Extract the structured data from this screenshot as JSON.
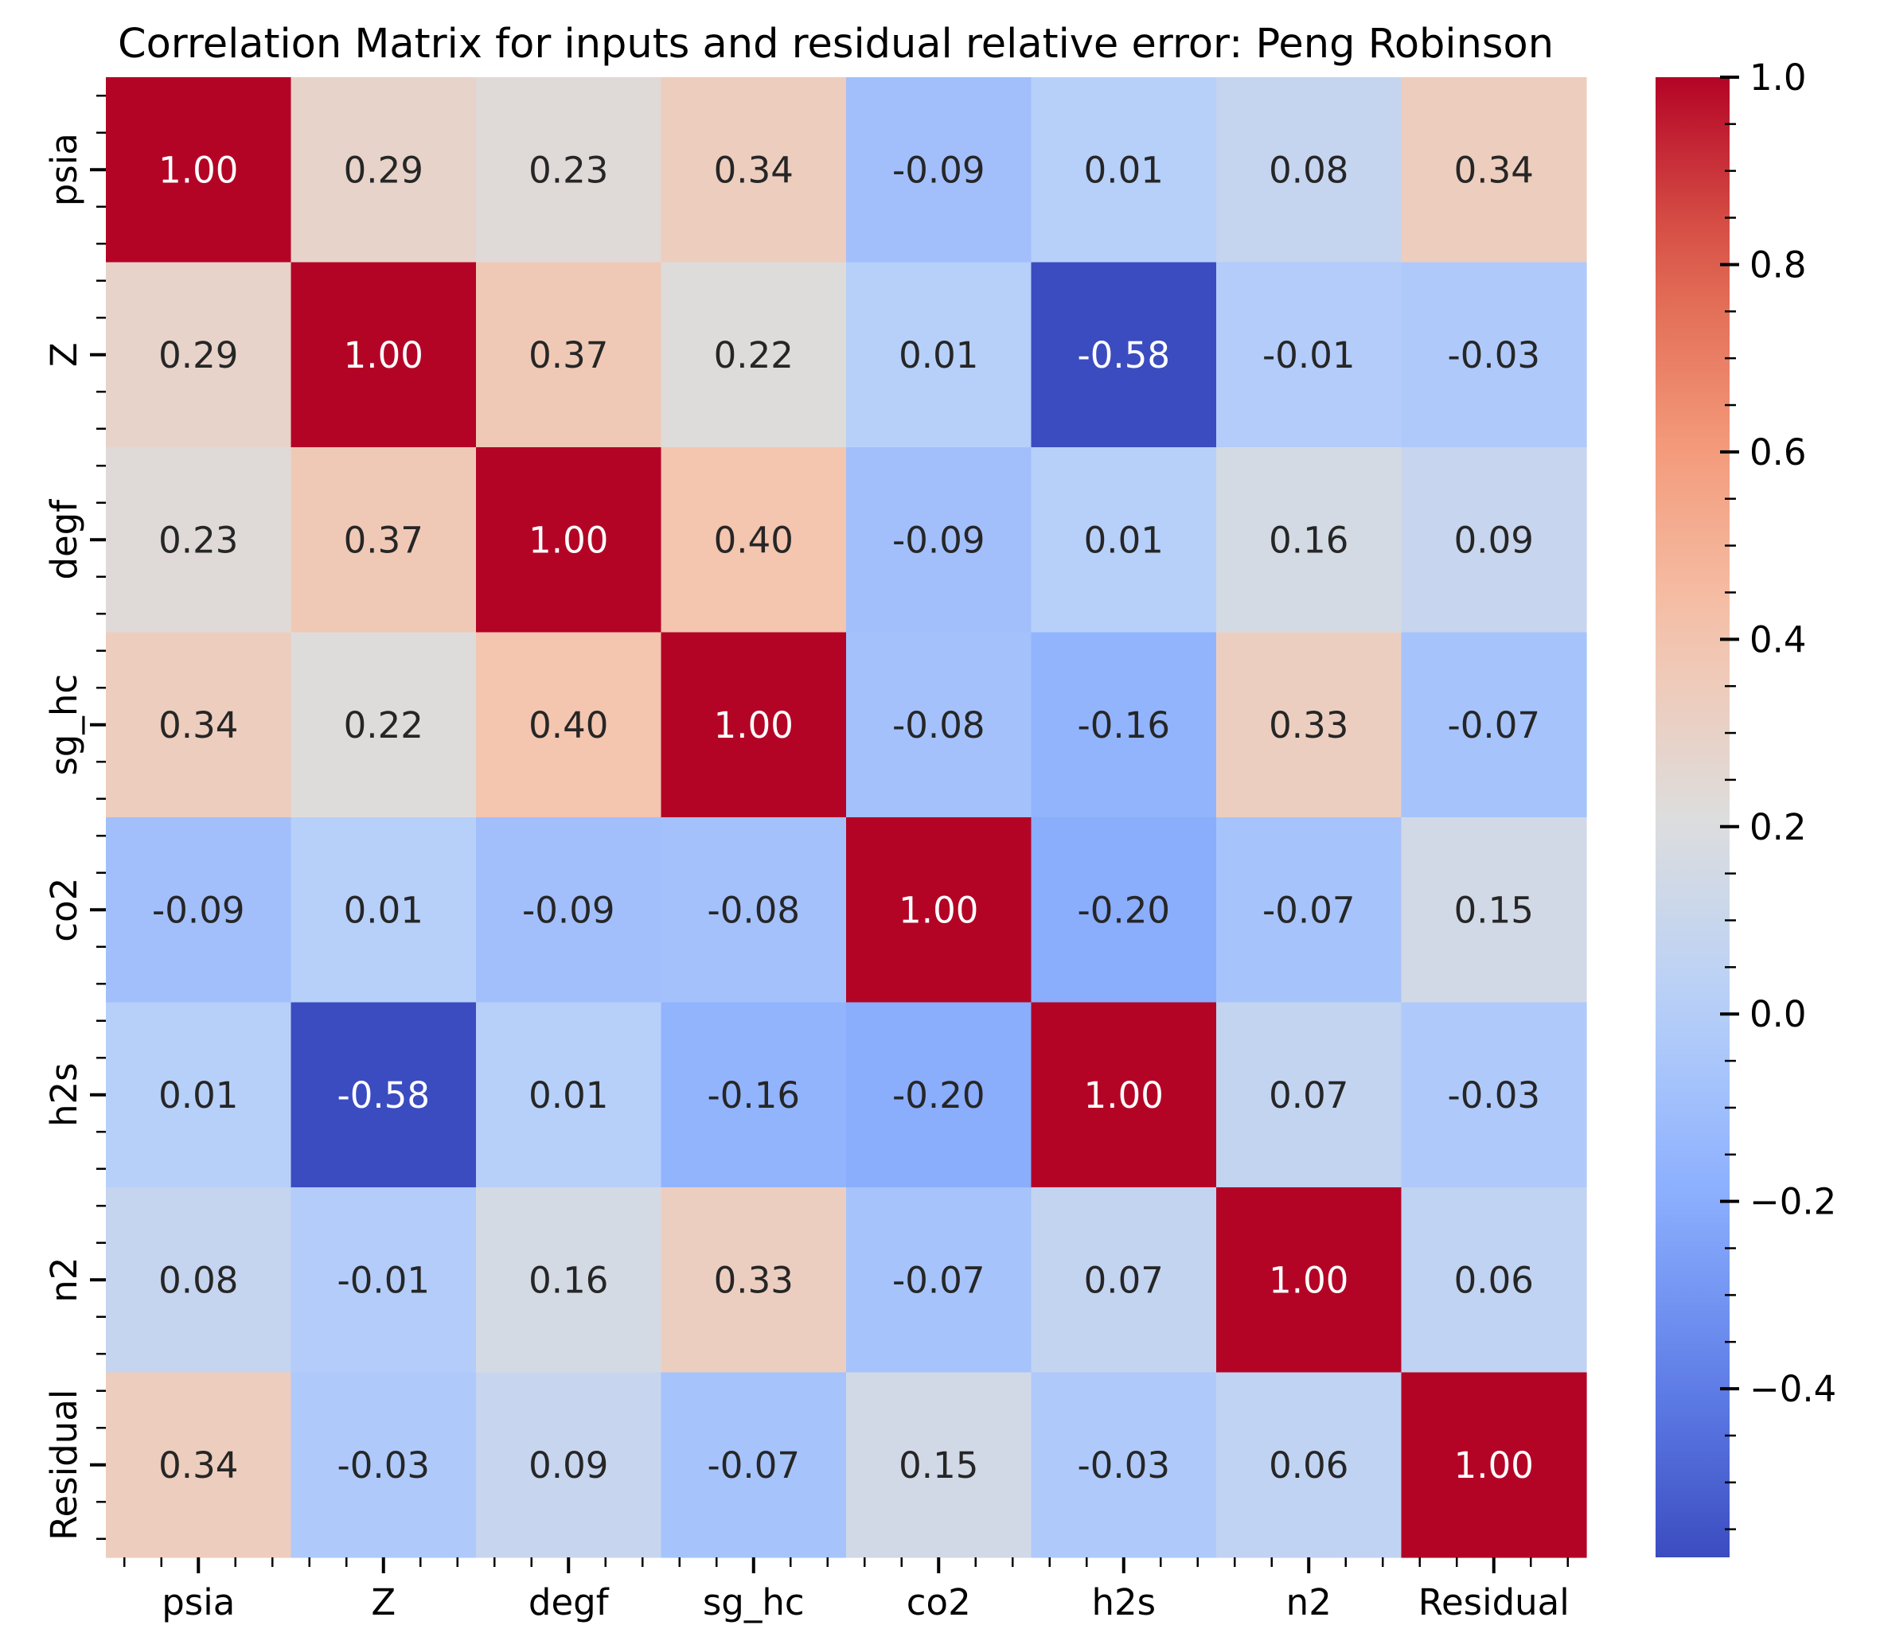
{
  "chart_data": {
    "type": "heatmap",
    "title": "Correlation Matrix for inputs and residual relative error: Peng Robinson",
    "labels": [
      "psia",
      "Z",
      "degf",
      "sg_hc",
      "co2",
      "h2s",
      "n2",
      "Residual"
    ],
    "values": [
      [
        1.0,
        0.29,
        0.23,
        0.34,
        -0.09,
        0.01,
        0.08,
        0.34
      ],
      [
        0.29,
        1.0,
        0.37,
        0.22,
        0.01,
        -0.58,
        -0.01,
        -0.03
      ],
      [
        0.23,
        0.37,
        1.0,
        0.4,
        -0.09,
        0.01,
        0.16,
        0.09
      ],
      [
        0.34,
        0.22,
        0.4,
        1.0,
        -0.08,
        -0.16,
        0.33,
        -0.07
      ],
      [
        -0.09,
        0.01,
        -0.09,
        -0.08,
        1.0,
        -0.2,
        -0.07,
        0.15
      ],
      [
        0.01,
        -0.58,
        0.01,
        -0.16,
        -0.2,
        1.0,
        0.07,
        -0.03
      ],
      [
        0.08,
        -0.01,
        0.16,
        0.33,
        -0.07,
        0.07,
        1.0,
        0.06
      ],
      [
        0.34,
        -0.03,
        0.09,
        -0.07,
        0.15,
        -0.03,
        0.06,
        1.0
      ]
    ],
    "annotations": [
      [
        "1.00",
        "0.29",
        "0.23",
        "0.34",
        "-0.09",
        "0.01",
        "0.08",
        "0.34"
      ],
      [
        "0.29",
        "1.00",
        "0.37",
        "0.22",
        "0.01",
        "-0.58",
        "-0.01",
        "-0.03"
      ],
      [
        "0.23",
        "0.37",
        "1.00",
        "0.40",
        "-0.09",
        "0.01",
        "0.16",
        "0.09"
      ],
      [
        "0.34",
        "0.22",
        "0.40",
        "1.00",
        "-0.08",
        "-0.16",
        "0.33",
        "-0.07"
      ],
      [
        "-0.09",
        "0.01",
        "-0.09",
        "-0.08",
        "1.00",
        "-0.20",
        "-0.07",
        "0.15"
      ],
      [
        "0.01",
        "-0.58",
        "0.01",
        "-0.16",
        "-0.20",
        "1.00",
        "0.07",
        "-0.03"
      ],
      [
        "0.08",
        "-0.01",
        "0.16",
        "0.33",
        "-0.07",
        "0.07",
        "1.00",
        "0.06"
      ],
      [
        "0.34",
        "-0.03",
        "0.09",
        "-0.07",
        "0.15",
        "-0.03",
        "0.06",
        "1.00"
      ]
    ],
    "colormap": "coolwarm",
    "vmin": -0.58,
    "vmax": 1.0,
    "colorbar_ticks": [
      "−0.4",
      "−0.2",
      "0.0",
      "0.2",
      "0.4",
      "0.6",
      "0.8",
      "1.0"
    ],
    "colorbar_tick_values": [
      -0.4,
      -0.2,
      0.0,
      0.2,
      0.4,
      0.6,
      0.8,
      1.0
    ],
    "legend": "colorbar-right"
  }
}
